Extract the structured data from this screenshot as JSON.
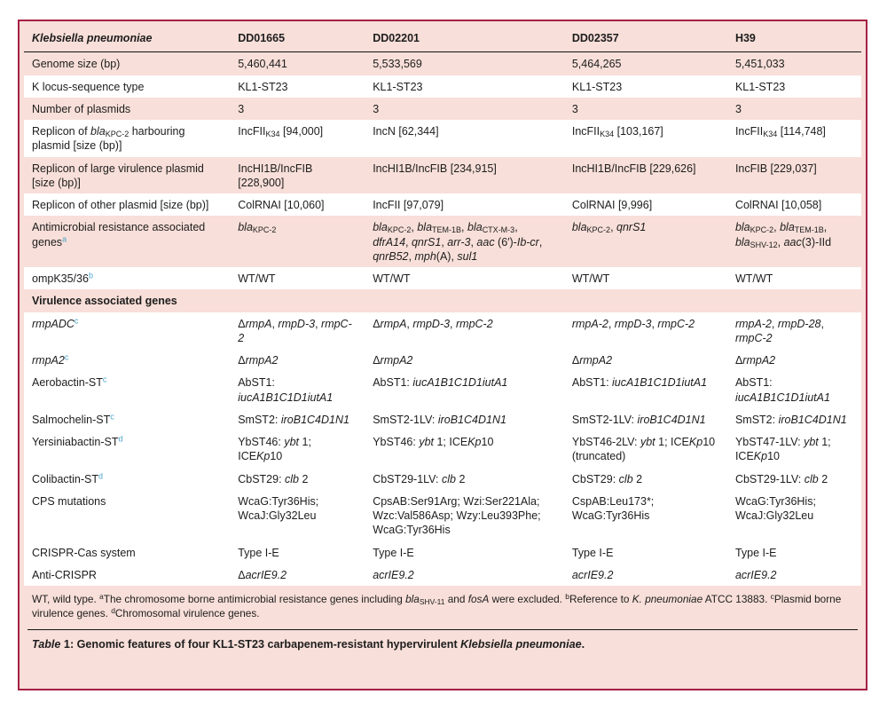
{
  "colors": {
    "frame_border": "#A52045",
    "row_pink": "#F8DFD9",
    "row_white": "#FFFFFF",
    "label_superscript_blue": "#4BA6CB",
    "text": "#1D1D1D"
  },
  "table": {
    "header": [
      "Klebsiella pneumoniae",
      "DD01665",
      "DD02201",
      "DD02357",
      "H39"
    ],
    "rows": [
      {
        "type": "data",
        "shade": "pink",
        "label": "Genome size (bp)",
        "cells": [
          "5,460,441",
          "5,533,569",
          "5,464,265",
          "5,451,033"
        ]
      },
      {
        "type": "data",
        "shade": "white",
        "label": "K locus-sequence type",
        "cells": [
          "KL1-ST23",
          "KL1-ST23",
          "KL1-ST23",
          "KL1-ST23"
        ]
      },
      {
        "type": "data",
        "shade": "pink",
        "label": "Number of plasmids",
        "cells": [
          "3",
          "3",
          "3",
          "3"
        ]
      },
      {
        "type": "data",
        "shade": "white",
        "label": "Replicon of <i>bla</i><sub>KPC-2</sub> harbouring plasmid [size (bp)]",
        "cells": [
          "IncFII<sub>K34</sub> [94,000]",
          "IncN [62,344]",
          "IncFII<sub>K34</sub> [103,167]",
          "IncFII<sub>K34</sub> [114,748]"
        ]
      },
      {
        "type": "data",
        "shade": "pink",
        "label": "Replicon of large virulence plasmid [size (bp)]",
        "cells": [
          "IncHI1B/IncFIB [228,900]",
          "IncHI1B/IncFIB [234,915]",
          "IncHI1B/IncFIB [229,626]",
          "IncFIB [229,037]"
        ]
      },
      {
        "type": "data",
        "shade": "white",
        "label": "Replicon of other plasmid [size (bp)]",
        "cells": [
          "ColRNAI [10,060]",
          "IncFII [97,079]",
          "ColRNAI [9,996]",
          "ColRNAI [10,058]"
        ]
      },
      {
        "type": "data",
        "shade": "pink",
        "label": "Antimicrobial resistance associated genes<sup>a</sup>",
        "cells": [
          "<i>bla</i><sub>KPC-2</sub>",
          "<i>bla</i><sub>KPC-2</sub>, <i>bla</i><sub>TEM-1B</sub>, <i>bla</i><sub>CTX-M-3</sub>, <i>dfrA14</i>, <i>qnrS1</i>, <i>arr-3</i>, <i>aac</i> (6′)-<i>Ib-cr</i>, <i>qnrB52</i>, <i>mph</i>(A), <i>sul1</i>",
          "<i>bla</i><sub>KPC-2</sub>, <i>qnrS1</i>",
          "<i>bla</i><sub>KPC-2</sub>, <i>bla</i><sub>TEM-1B</sub>, <i>bla</i><sub>SHV-12</sub>, <i>aac</i>(3)-IId"
        ]
      },
      {
        "type": "data",
        "shade": "white",
        "label": "ompK35/36<sup>b</sup>",
        "cells": [
          "WT/WT",
          "WT/WT",
          "WT/WT",
          "WT/WT"
        ]
      },
      {
        "type": "section",
        "shade": "pink",
        "label": "Virulence associated genes"
      },
      {
        "type": "data",
        "shade": "white",
        "label": "<i>rmpADC</i><sup>c</sup>",
        "cells": [
          "Δ<i>rmpA</i>, <i>rmpD-3</i>, <i>rmpC-2</i>",
          "Δ<i>rmpA</i>, <i>rmpD-3</i>, <i>rmpC-2</i>",
          "<i>rmpA-2</i>, <i>rmpD-3</i>, <i>rmpC-2</i>",
          "<i>rmpA-2</i>, <i>rmpD-28</i>, <i>rmpC-2</i>"
        ]
      },
      {
        "type": "data",
        "shade": "white",
        "label": "<i>rmpA2</i><sup>c</sup>",
        "cells": [
          "Δ<i>rmpA2</i>",
          "Δ<i>rmpA2</i>",
          "Δ<i>rmpA2</i>",
          "Δ<i>rmpA2</i>"
        ]
      },
      {
        "type": "data",
        "shade": "white",
        "label": "Aerobactin-ST<sup>c</sup>",
        "cells": [
          "AbST1: <i>iucA1B1C1D1iutA1</i>",
          "AbST1: <i>iucA1B1C1D1iutA1</i>",
          "AbST1: <i>iucA1B1C1D1iutA1</i>",
          "AbST1: <i>iucA1B1C1D1iutA1</i>"
        ]
      },
      {
        "type": "data",
        "shade": "white",
        "label": "Salmochelin-ST<sup>c</sup>",
        "cells": [
          "SmST2: <i>iroB1C4D1N1</i>",
          "SmST2-1LV: <i>iroB1C4D1N1</i>",
          "SmST2-1LV: <i>iroB1C4D1N1</i>",
          "SmST2: <i>iroB1C4D1N1</i>"
        ]
      },
      {
        "type": "data",
        "shade": "white",
        "label": "Yersiniabactin-ST<sup>d</sup>",
        "cells": [
          "YbST46: <i>ybt</i> 1; ICE<i>Kp</i>10",
          "YbST46: <i>ybt</i> 1; ICE<i>Kp</i>10",
          "YbST46-2LV: <i>ybt</i> 1; ICE<i>Kp</i>10 (truncated)",
          "YbST47-1LV: <i>ybt</i> 1; ICE<i>Kp</i>10"
        ]
      },
      {
        "type": "data",
        "shade": "white",
        "label": "Colibactin-ST<sup>d</sup>",
        "cells": [
          "CbST29: <i>clb</i> 2",
          "CbST29-1LV: <i>clb</i> 2",
          "CbST29: <i>clb</i> 2",
          "CbST29-1LV: <i>clb</i> 2"
        ]
      },
      {
        "type": "data",
        "shade": "white",
        "label": "CPS mutations",
        "cells": [
          "WcaG:Tyr36His; WcaJ:Gly32Leu",
          "CpsAB:Ser91Arg; Wzi:Ser221Ala; Wzc:Val586Asp; Wzy:Leu393Phe; WcaG:Tyr36His",
          "CspAB:Leu173*; WcaG:Tyr36His",
          "WcaG:Tyr36His; WcaJ:Gly32Leu"
        ]
      },
      {
        "type": "data",
        "shade": "white",
        "label": "CRISPR-Cas system",
        "cells": [
          "Type I-E",
          "Type I-E",
          "Type I-E",
          "Type I-E"
        ]
      },
      {
        "type": "data",
        "shade": "white",
        "label": "Anti-CRISPR",
        "cells": [
          "Δ<i>acrIE9.2</i>",
          "<i>acrIE9.2</i>",
          "<i>acrIE9.2</i>",
          "<i>acrIE9.2</i>"
        ]
      }
    ],
    "footnote_html": "WT, wild type. <sup>a</sup>The chromosome borne antimicrobial resistance genes including <i>bla</i><sub>SHV-11</sub> and <i>fosA</i> were excluded. <sup>b</sup>Reference to <i>K. pneumoniae</i> ATCC 13883. <sup>c</sup>Plasmid borne virulence genes. <sup>d</sup>Chromosomal virulence genes.",
    "caption_html": "<i>Table</i> 1: Genomic features of four KL1-ST23 carbapenem-resistant hypervirulent <i>Klebsiella pneumoniae</i>."
  }
}
